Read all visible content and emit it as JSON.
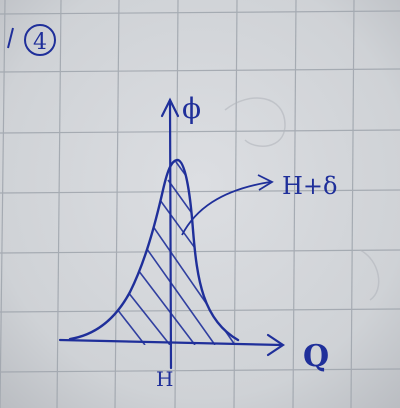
{
  "sketch": {
    "section_number": "4",
    "y_axis_label": "ϕ",
    "x_axis_label": "Q",
    "annotation": "H+δ",
    "peak_label": "H"
  },
  "colors": {
    "paper": "#d4d6da",
    "grid": "#9aa0a8",
    "ink": "#1f2f9a"
  }
}
